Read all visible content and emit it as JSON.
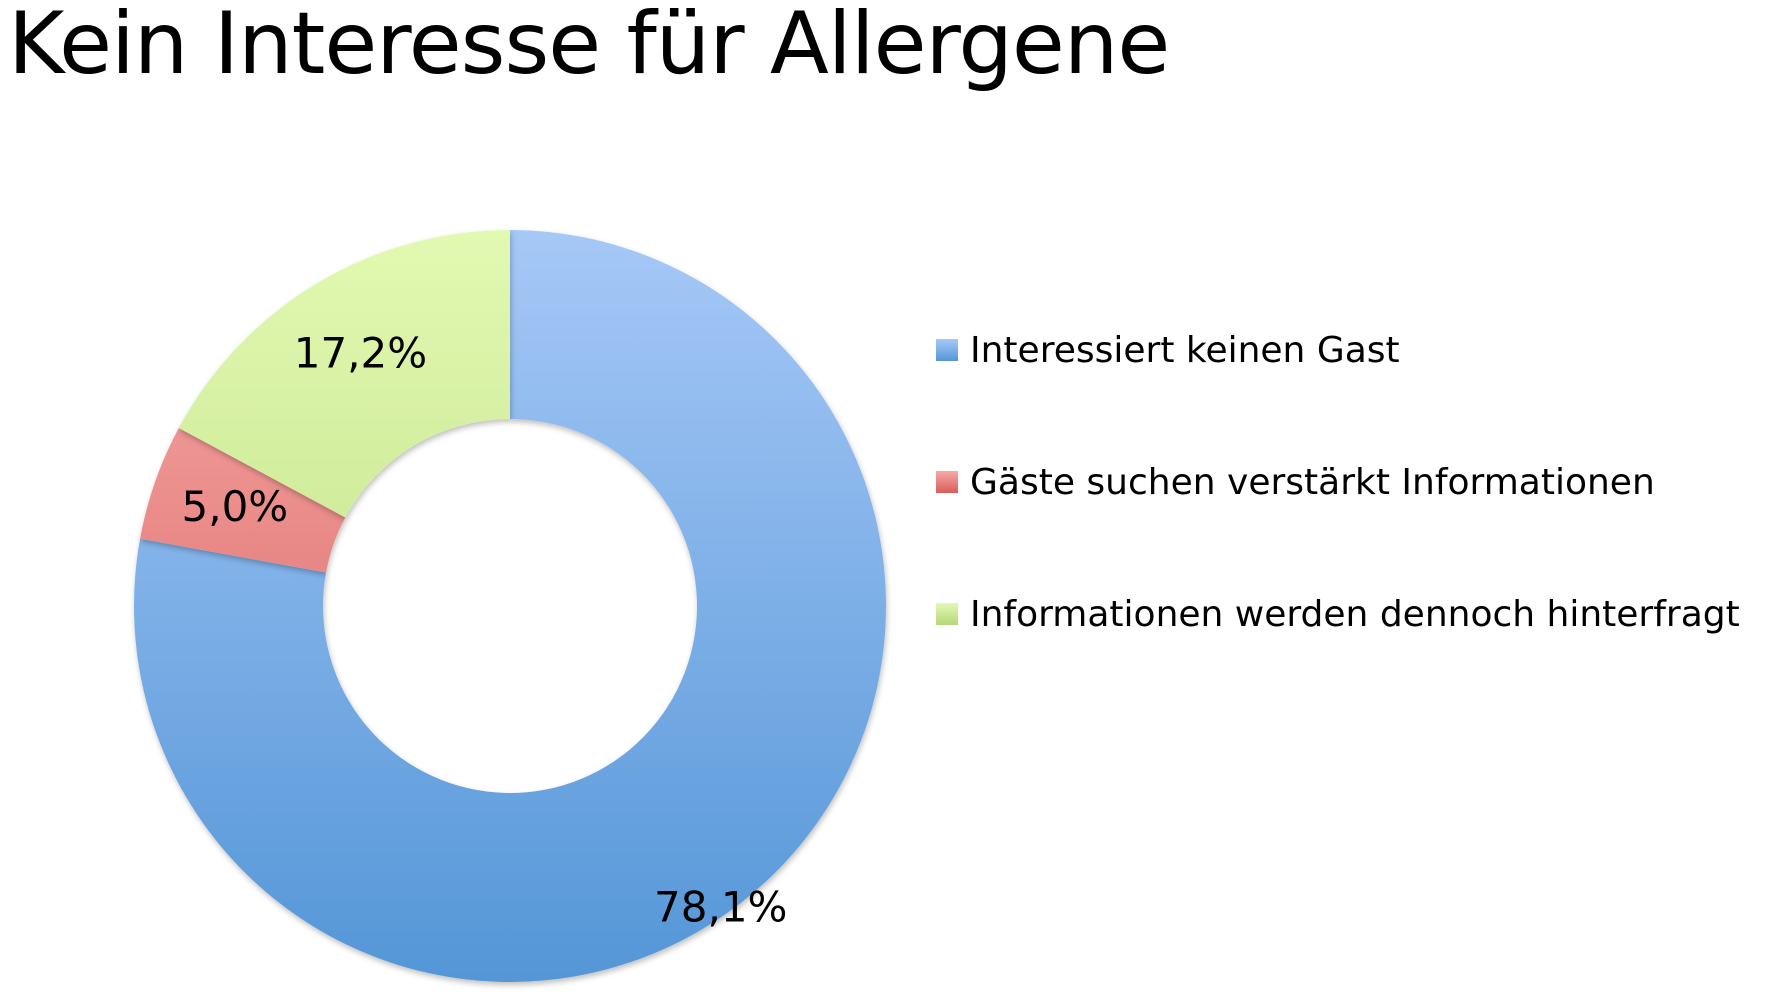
{
  "chart_data": {
    "type": "pie",
    "title": "Kein Interesse für Allergene",
    "donut": true,
    "legend_position": "right",
    "slices": [
      {
        "label": "Interessiert keinen Gast",
        "value": 78.1,
        "value_label": "78,1%",
        "color": "#6FA1DE",
        "color_light": "#A6C8F7",
        "color_dark": "#5496D7"
      },
      {
        "label": "Gäste suchen verstärkt Informationen",
        "value": 5.0,
        "value_label": "5,0%",
        "color": "#E67A78",
        "color_light": "#F6AAA8",
        "color_dark": "#D75C5A"
      },
      {
        "label": "Informationen werden dennoch hinterfragt",
        "value": 17.2,
        "value_label": "17,2%",
        "color": "#C6E28F",
        "color_light": "#E2F9B1",
        "color_dark": "#B5D77A"
      }
    ]
  }
}
